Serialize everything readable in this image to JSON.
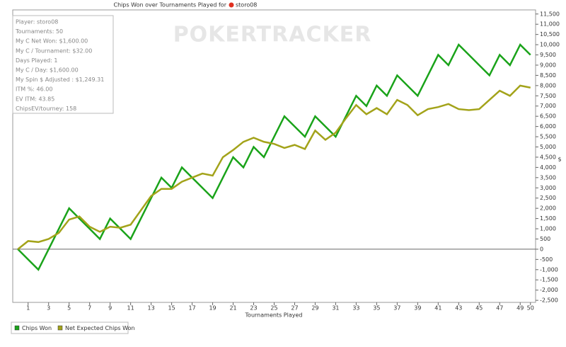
{
  "chart_data": {
    "type": "line",
    "title": "Chips Won over Tournaments Played for",
    "title_player": "storo08",
    "watermark": "POKERTRACKER",
    "x_label": "Tournaments Played",
    "y_label": "$",
    "info_box": [
      "Player: storo08",
      "Tournaments: 50",
      "My C Net Won: $1,600.00",
      "My C / Tournament: $32.00",
      "Days Played: 1",
      "My C / Day: $1,600.00",
      "My Spin $ Adjusted : $1,249.31",
      "ITM %: 46.00",
      "EV ITM: 43.85",
      "ChipsEV/tourney: 158"
    ],
    "x": [
      0,
      1,
      2,
      3,
      4,
      5,
      6,
      7,
      8,
      9,
      10,
      11,
      12,
      13,
      14,
      15,
      16,
      17,
      18,
      19,
      20,
      21,
      22,
      23,
      24,
      25,
      26,
      27,
      28,
      29,
      30,
      31,
      32,
      33,
      34,
      35,
      36,
      37,
      38,
      39,
      40,
      41,
      42,
      43,
      44,
      45,
      46,
      47,
      48,
      49,
      50
    ],
    "xlim": [
      -0.5,
      50.5
    ],
    "xticks": [
      1,
      3,
      5,
      7,
      9,
      11,
      13,
      15,
      17,
      19,
      21,
      23,
      25,
      27,
      29,
      31,
      33,
      35,
      37,
      39,
      41,
      43,
      45,
      47,
      49,
      50
    ],
    "ylim": [
      -2600,
      11700
    ],
    "yticks": [
      {
        "value": -2500,
        "label": "-2,500"
      },
      {
        "value": -2000,
        "label": "-2,000"
      },
      {
        "value": -1500,
        "label": "-1,500"
      },
      {
        "value": -1000,
        "label": "-1,000"
      },
      {
        "value": -500,
        "label": "-500"
      },
      0,
      500,
      {
        "value": 1000,
        "label": "1,000"
      },
      {
        "value": 1500,
        "label": "1,500"
      },
      {
        "value": 2000,
        "label": "2,000"
      },
      {
        "value": 2500,
        "label": "2,500"
      },
      {
        "value": 3000,
        "label": "3,000"
      },
      {
        "value": 3500,
        "label": "3,500"
      },
      {
        "value": 4000,
        "label": "4,000"
      },
      {
        "value": 4500,
        "label": "4,500"
      },
      {
        "value": 5000,
        "label": "5,000"
      },
      {
        "value": 5500,
        "label": "5,500"
      },
      {
        "value": 6000,
        "label": "6,000"
      },
      {
        "value": 6500,
        "label": "6,500"
      },
      {
        "value": 7000,
        "label": "7,000"
      },
      {
        "value": 7500,
        "label": "7,500"
      },
      {
        "value": 8000,
        "label": "8,000"
      },
      {
        "value": 8500,
        "label": "8,500"
      },
      {
        "value": 9000,
        "label": "9,000"
      },
      {
        "value": 9500,
        "label": "9,500"
      },
      {
        "value": 10000,
        "label": "10,000"
      },
      {
        "value": 10500,
        "label": "10,500"
      },
      {
        "value": 11000,
        "label": "11,000"
      },
      {
        "value": 11500,
        "label": "11,500"
      }
    ],
    "series": [
      {
        "name": "Chips Won",
        "color": "#1aa31a",
        "values": [
          0,
          -500,
          -1000,
          0,
          1000,
          2000,
          1500,
          1000,
          500,
          1500,
          1000,
          500,
          1500,
          2500,
          3500,
          3000,
          4000,
          3500,
          3000,
          2500,
          3500,
          4500,
          4000,
          5000,
          4500,
          5500,
          6500,
          6000,
          5500,
          6500,
          6000,
          5500,
          6500,
          7500,
          7000,
          8000,
          7500,
          8500,
          8000,
          7500,
          8500,
          9500,
          9000,
          10000,
          9500,
          9000,
          8500,
          9500,
          9000,
          10000,
          9500
        ]
      },
      {
        "name": "Net Expected Chips Won",
        "color": "#a3a31a",
        "values": [
          0,
          400,
          350,
          500,
          800,
          1450,
          1600,
          1100,
          850,
          1100,
          1050,
          1200,
          1900,
          2600,
          2950,
          2950,
          3300,
          3500,
          3700,
          3600,
          4500,
          4850,
          5250,
          5450,
          5250,
          5150,
          4950,
          5100,
          4900,
          5800,
          5350,
          5700,
          6400,
          7050,
          6600,
          6900,
          6600,
          7300,
          7050,
          6550,
          6850,
          6950,
          7100,
          6850,
          6800,
          6850,
          7300,
          7750,
          7500,
          8000,
          7900
        ]
      }
    ]
  }
}
